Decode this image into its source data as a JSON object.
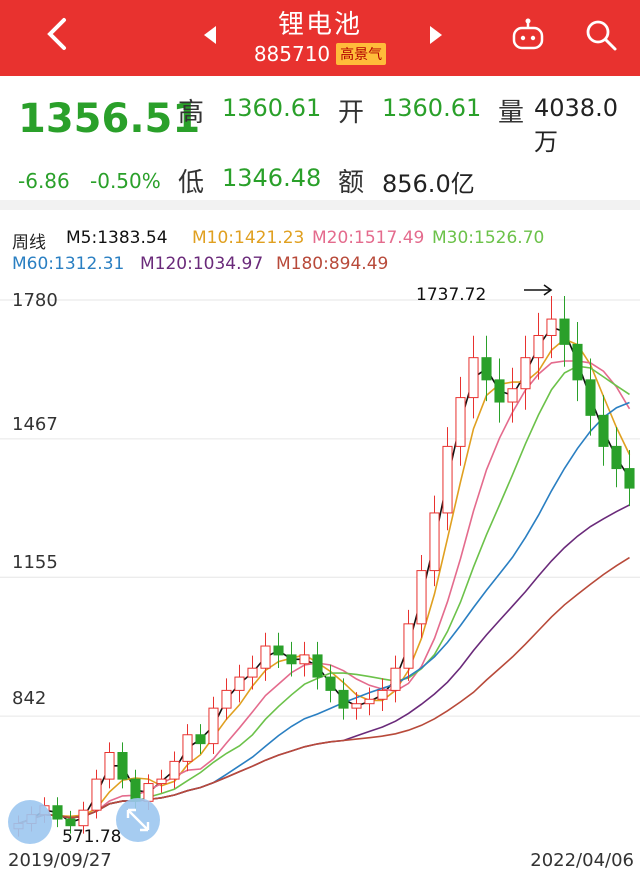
{
  "header": {
    "title": "锂电池",
    "code": "885710",
    "badge": "高景气"
  },
  "quote": {
    "price": "1356.51",
    "change": "-6.86",
    "change_pct": "-0.50%",
    "high_label": "高",
    "high": "1360.61",
    "open_label": "开",
    "open": "1360.61",
    "volume_label": "量",
    "volume": "4038.0万",
    "low_label": "低",
    "low": "1346.48",
    "amount_label": "额",
    "amount": "856.0亿"
  },
  "ma_bar": {
    "period": "周线",
    "m5": "M5:1383.54",
    "m10": "M10:1421.23",
    "m20": "M20:1517.49",
    "m30": "M30:1526.70",
    "m60": "M60:1312.31",
    "m120": "M120:1034.97",
    "m180": "M180:894.49",
    "colors": {
      "m5": "#111111",
      "m10": "#e0a020",
      "m20": "#e46b8d",
      "m30": "#6cc24a",
      "m60": "#2a7fc2",
      "m120": "#6a2a7a",
      "m180": "#b84a3a"
    }
  },
  "chart_data": {
    "type": "candlestick",
    "y_ticks": [
      "1780",
      "1467",
      "1155",
      "842"
    ],
    "x_start": "2019/09/27",
    "x_end": "2022/04/06",
    "max_label": "1737.72",
    "min_label": "571.78",
    "ylim": [
      571.78,
      1780
    ],
    "closes": [
      600,
      620,
      640,
      610,
      595,
      630,
      700,
      760,
      700,
      650,
      690,
      700,
      740,
      800,
      780,
      860,
      900,
      930,
      950,
      1000,
      980,
      960,
      980,
      930,
      900,
      860,
      870,
      880,
      900,
      950,
      1050,
      1170,
      1300,
      1450,
      1560,
      1650,
      1600,
      1550,
      1580,
      1650,
      1700,
      1737,
      1680,
      1600,
      1520,
      1450,
      1400,
      1356
    ]
  },
  "icons": {
    "back": "back-arrow-icon",
    "prev": "prev-triangle-icon",
    "next": "next-triangle-icon",
    "robot": "robot-icon",
    "search": "search-icon",
    "expand": "expand-icon"
  }
}
